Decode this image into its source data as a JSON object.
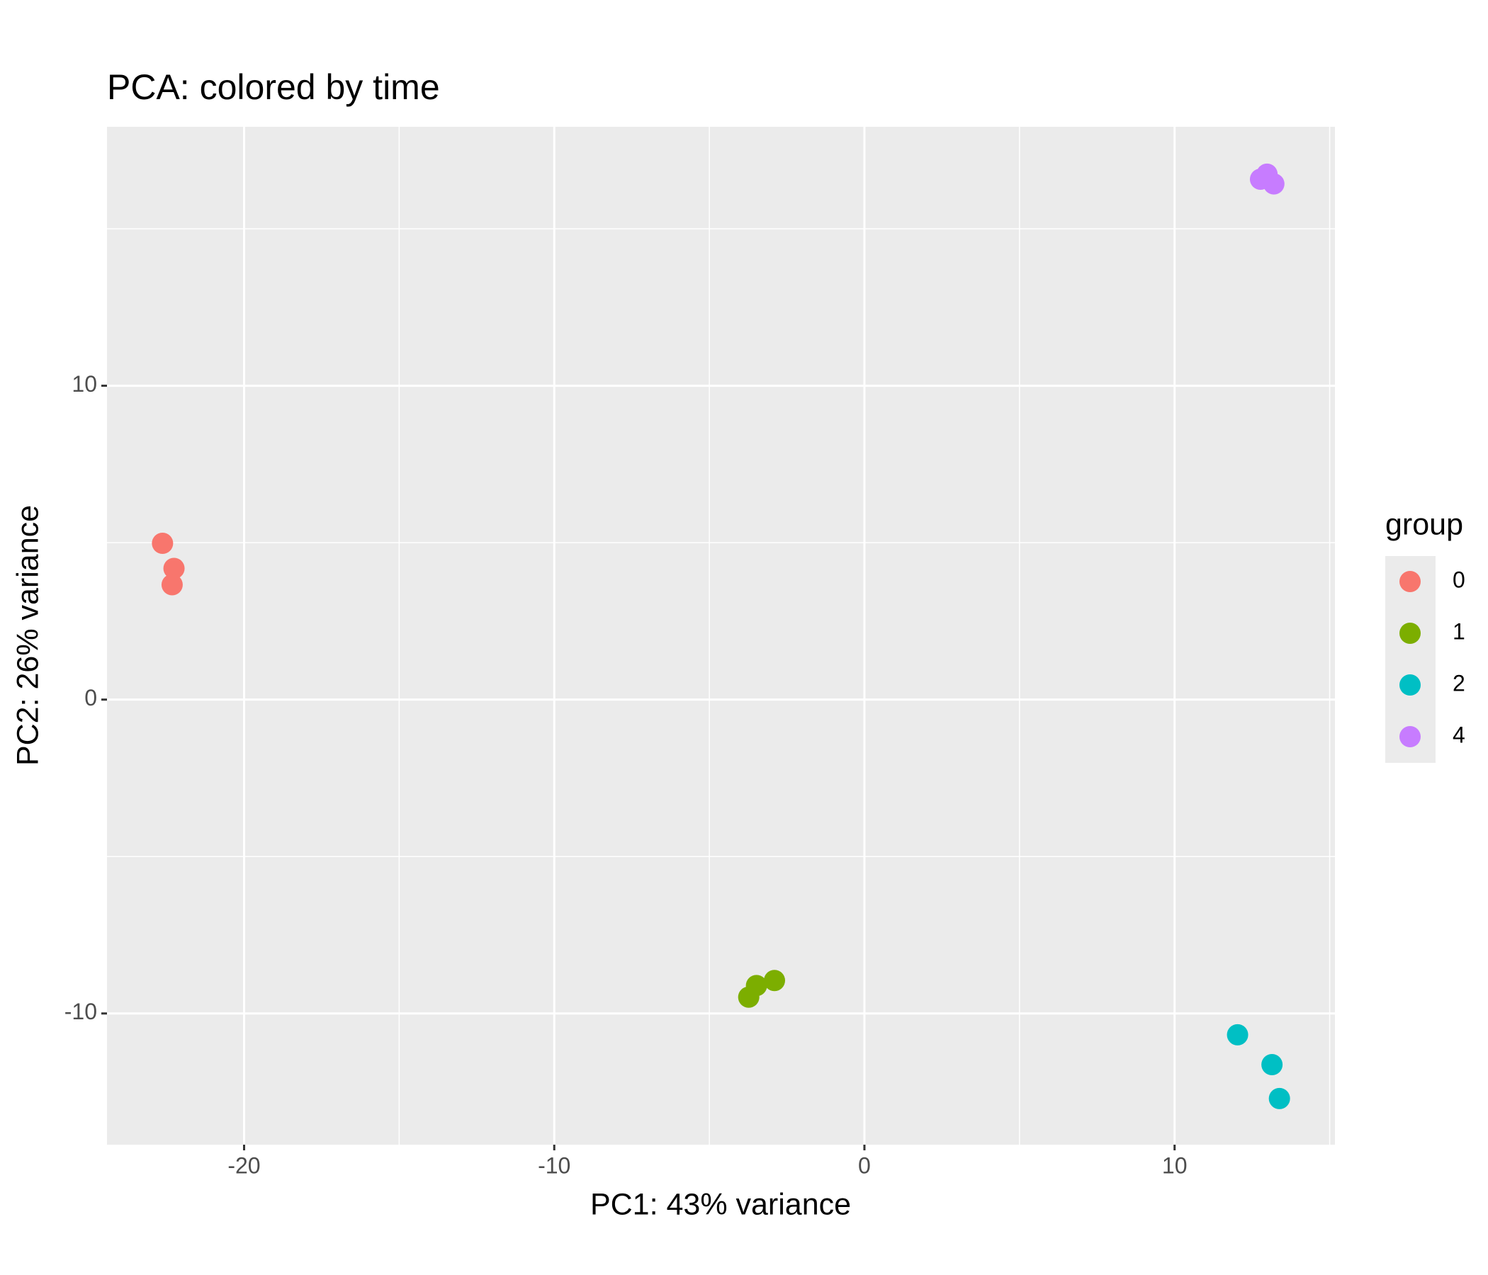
{
  "chart_data": {
    "type": "scatter",
    "title": "PCA: colored by time",
    "x_label": "PC1: 43% variance",
    "y_label": "PC2: 26% variance",
    "legend_title": "group",
    "legend": "right",
    "grid": true,
    "xlim": [
      -24.42,
      15.17
    ],
    "ylim": [
      -14.18,
      18.25
    ],
    "xticks": [
      -20,
      -10,
      0,
      10
    ],
    "yticks": [
      -10,
      0,
      10
    ],
    "xminorticks": [
      -15,
      -5,
      5,
      15
    ],
    "yminorticks": [
      -5,
      5,
      15
    ],
    "series": [
      {
        "name": "0",
        "color": "#f8766d",
        "x": [
          -22.63,
          -22.26,
          -22.32
        ],
        "values": [
          4.98,
          4.18,
          3.66
        ]
      },
      {
        "name": "1",
        "color": "#7cae00",
        "x": [
          -3.73,
          -3.48,
          -2.9
        ],
        "values": [
          -9.48,
          -9.11,
          -8.95
        ]
      },
      {
        "name": "2",
        "color": "#00bfc4",
        "x": [
          12.03,
          13.14,
          13.38
        ],
        "values": [
          -10.68,
          -11.63,
          -12.71
        ]
      },
      {
        "name": "4",
        "color": "#c77cff",
        "x": [
          12.77,
          12.98,
          13.2
        ],
        "values": [
          16.58,
          16.74,
          16.43
        ]
      }
    ]
  }
}
